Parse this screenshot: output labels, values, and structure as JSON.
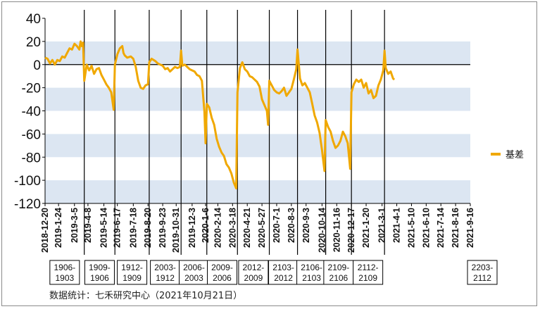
{
  "chart_data": {
    "type": "line",
    "title": "",
    "xlabel": "",
    "ylabel": "",
    "ylim": [
      -120,
      40
    ],
    "yticks": [
      40,
      20,
      0,
      -20,
      -40,
      -60,
      -80,
      -100,
      -120
    ],
    "grid": "alternating horizontal bands",
    "legend_position": "right",
    "series": [
      {
        "name": "基差",
        "color": "#f0a800",
        "points": [
          [
            0,
            6
          ],
          [
            2,
            5
          ],
          [
            4,
            1
          ],
          [
            6,
            4
          ],
          [
            8,
            0
          ],
          [
            10,
            4
          ],
          [
            12,
            3
          ],
          [
            14,
            7
          ],
          [
            16,
            6
          ],
          [
            18,
            10
          ],
          [
            20,
            14
          ],
          [
            22,
            13
          ],
          [
            24,
            18
          ],
          [
            26,
            16
          ],
          [
            28,
            13
          ],
          [
            29,
            20
          ],
          [
            30,
            16
          ],
          [
            31,
            19
          ],
          [
            32,
            -14
          ],
          [
            34,
            0
          ],
          [
            36,
            -5
          ],
          [
            38,
            -1
          ],
          [
            40,
            -8
          ],
          [
            42,
            -4
          ],
          [
            44,
            -3
          ],
          [
            46,
            -9
          ],
          [
            48,
            -13
          ],
          [
            50,
            -17
          ],
          [
            52,
            -20
          ],
          [
            54,
            -24
          ],
          [
            56,
            -39
          ],
          [
            57,
            0
          ],
          [
            59,
            9
          ],
          [
            61,
            14
          ],
          [
            63,
            16
          ],
          [
            64,
            10
          ],
          [
            65,
            8
          ],
          [
            67,
            6
          ],
          [
            70,
            7
          ],
          [
            72,
            5
          ],
          [
            74,
            -2
          ],
          [
            76,
            -14
          ],
          [
            78,
            -20
          ],
          [
            80,
            -21
          ],
          [
            82,
            -18
          ],
          [
            84,
            -17
          ],
          [
            85,
            2
          ],
          [
            87,
            5
          ],
          [
            90,
            3
          ],
          [
            92,
            1
          ],
          [
            94,
            0
          ],
          [
            96,
            -1
          ],
          [
            98,
            -4
          ],
          [
            100,
            -3
          ],
          [
            102,
            -6
          ],
          [
            104,
            -4
          ],
          [
            106,
            -2
          ],
          [
            108,
            -3
          ],
          [
            110,
            -2
          ],
          [
            111,
            12
          ],
          [
            112,
            -1
          ],
          [
            114,
            0
          ],
          [
            116,
            -2
          ],
          [
            118,
            -4
          ],
          [
            120,
            -5
          ],
          [
            122,
            -6
          ],
          [
            124,
            -9
          ],
          [
            126,
            -10
          ],
          [
            128,
            -14
          ],
          [
            129,
            -27
          ],
          [
            130,
            -40
          ],
          [
            131,
            -68
          ],
          [
            132,
            -34
          ],
          [
            134,
            -37
          ],
          [
            136,
            -46
          ],
          [
            138,
            -52
          ],
          [
            140,
            -64
          ],
          [
            142,
            -71
          ],
          [
            144,
            -76
          ],
          [
            146,
            -79
          ],
          [
            148,
            -86
          ],
          [
            150,
            -89
          ],
          [
            152,
            -94
          ],
          [
            154,
            -102
          ],
          [
            156,
            -107
          ],
          [
            157,
            -24
          ],
          [
            159,
            -3
          ],
          [
            161,
            2
          ],
          [
            163,
            -4
          ],
          [
            165,
            -6
          ],
          [
            167,
            -10
          ],
          [
            169,
            -11
          ],
          [
            171,
            -13
          ],
          [
            173,
            -15
          ],
          [
            175,
            -19
          ],
          [
            177,
            -30
          ],
          [
            179,
            -35
          ],
          [
            181,
            -40
          ],
          [
            182,
            -52
          ],
          [
            183,
            -14
          ],
          [
            185,
            -18
          ],
          [
            187,
            -22
          ],
          [
            189,
            -24
          ],
          [
            191,
            -25
          ],
          [
            193,
            -23
          ],
          [
            195,
            -20
          ],
          [
            197,
            -27
          ],
          [
            199,
            -24
          ],
          [
            201,
            -21
          ],
          [
            203,
            -13
          ],
          [
            205,
            -4
          ],
          [
            206,
            13
          ],
          [
            208,
            -12
          ],
          [
            210,
            -18
          ],
          [
            212,
            -16
          ],
          [
            214,
            -20
          ],
          [
            216,
            -24
          ],
          [
            218,
            -34
          ],
          [
            220,
            -44
          ],
          [
            222,
            -50
          ],
          [
            224,
            -59
          ],
          [
            226,
            -74
          ],
          [
            228,
            -92
          ],
          [
            229,
            -48
          ],
          [
            231,
            -54
          ],
          [
            233,
            -58
          ],
          [
            235,
            -66
          ],
          [
            237,
            -72
          ],
          [
            239,
            -70
          ],
          [
            241,
            -66
          ],
          [
            243,
            -58
          ],
          [
            245,
            -62
          ],
          [
            247,
            -68
          ],
          [
            249,
            -90
          ],
          [
            250,
            -24
          ],
          [
            252,
            -17
          ],
          [
            254,
            -13
          ],
          [
            256,
            -15
          ],
          [
            258,
            -13
          ],
          [
            260,
            -20
          ],
          [
            262,
            -16
          ],
          [
            264,
            -25
          ],
          [
            266,
            -22
          ],
          [
            268,
            -29
          ],
          [
            270,
            -27
          ],
          [
            272,
            -18
          ],
          [
            274,
            -13
          ],
          [
            276,
            -5
          ],
          [
            277,
            12
          ],
          [
            278,
            -3
          ],
          [
            280,
            -8
          ],
          [
            282,
            -6
          ],
          [
            284,
            -12
          ],
          [
            285,
            -13
          ]
        ]
      }
    ],
    "xticks": [
      {
        "label": "2018-12-20",
        "t": 0
      },
      {
        "label": "2019-1-24",
        "t": 11
      },
      {
        "label": "2019-3-5",
        "t": 24
      },
      {
        "label": "2019-4-8",
        "t": 35
      },
      {
        "label": "2019-5-14",
        "t": 48
      },
      {
        "label": "2019-6-17",
        "t": 59
      },
      {
        "label": "2019-7-18",
        "t": 72
      },
      {
        "label": "2019-8-20",
        "t": 84
      },
      {
        "label": "2019-9-23",
        "t": 96
      },
      {
        "label": "2019-10-31",
        "t": 107
      },
      {
        "label": "2019-12-3",
        "t": 120
      },
      {
        "label": "2020-1-6",
        "t": 131
      },
      {
        "label": "2020-2-14",
        "t": 141
      },
      {
        "label": "2020-3-18",
        "t": 153
      },
      {
        "label": "2020-4-21",
        "t": 165
      },
      {
        "label": "2020-5-27",
        "t": 177
      },
      {
        "label": "2020-7-1",
        "t": 189
      },
      {
        "label": "2020-8-3",
        "t": 201
      },
      {
        "label": "2020-9-3",
        "t": 213
      },
      {
        "label": "2020-10-14",
        "t": 226
      },
      {
        "label": "2020-11-16",
        "t": 238
      },
      {
        "label": "2020-12-17",
        "t": 250
      },
      {
        "label": "2021-1-20",
        "t": 262
      },
      {
        "label": "2021-3-1",
        "t": 275
      },
      {
        "label": "2021-4-1",
        "t": 287
      },
      {
        "label": "2021-5-10",
        "t": 299
      },
      {
        "label": "2021-6-10",
        "t": 311
      },
      {
        "label": "2021-7-14",
        "t": 323
      },
      {
        "label": "2021-8-16",
        "t": 335
      },
      {
        "label": "2021-9-16",
        "t": 347
      }
    ],
    "period_dividers": [
      32,
      57,
      85,
      111,
      132,
      157,
      183,
      206,
      229,
      250,
      277
    ],
    "contract_labels": [
      {
        "line1": "1906-",
        "line2": "1903"
      },
      {
        "line1": "1909-",
        "line2": "1906"
      },
      {
        "line1": "1912-",
        "line2": "1909"
      },
      {
        "line1": "2003-",
        "line2": "1912"
      },
      {
        "line1": "2006-",
        "line2": "2003"
      },
      {
        "line1": "2009-",
        "line2": "2006"
      },
      {
        "line1": "2012-",
        "line2": "2009"
      },
      {
        "line1": "2103-",
        "line2": "2012"
      },
      {
        "line1": "2106-",
        "line2": "2103"
      },
      {
        "line1": "2109-",
        "line2": "2106"
      },
      {
        "line1": "2112-",
        "line2": "2109"
      },
      {
        "line1": "2203-",
        "line2": "2112"
      }
    ]
  },
  "source": "数据统计：七禾研究中心（2021年10月21日）"
}
